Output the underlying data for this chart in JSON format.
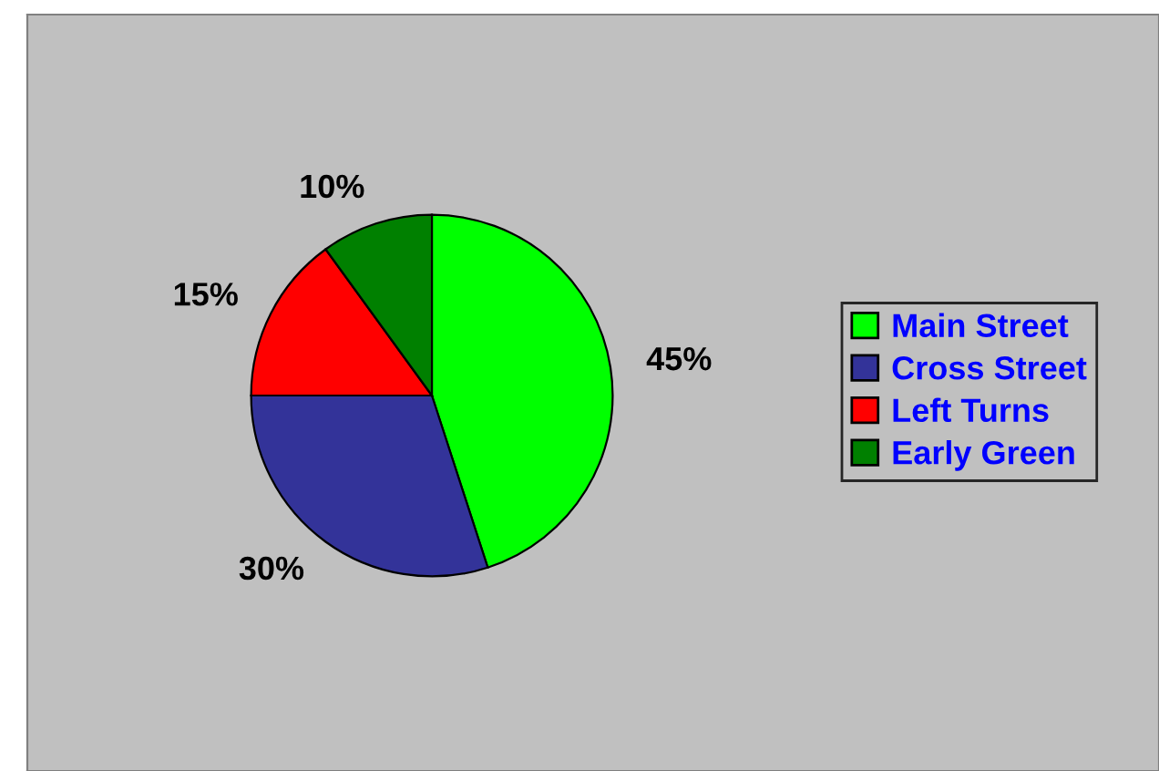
{
  "chart_data": {
    "type": "pie",
    "categories": [
      "Main Street",
      "Cross Street",
      "Left Turns",
      "Early Green"
    ],
    "values": [
      45,
      30,
      15,
      10
    ],
    "colors": [
      "#00ff00",
      "#333399",
      "#ff0000",
      "#008000"
    ],
    "value_labels": [
      "45%",
      "30%",
      "15%",
      "10%"
    ],
    "legend": "right"
  }
}
